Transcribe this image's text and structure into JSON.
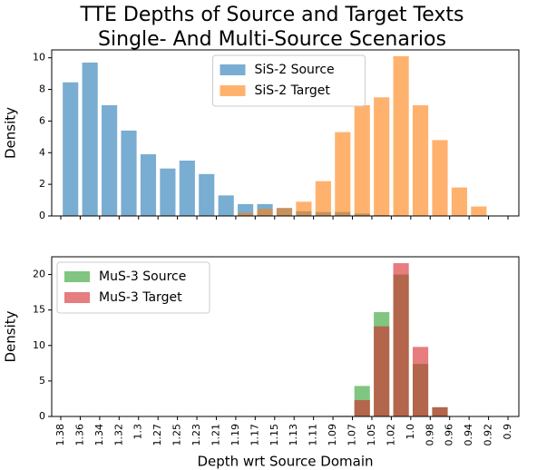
{
  "title": [
    "TTE Depths of Source and Target Texts",
    "Single- And Multi-Source Scenarios"
  ],
  "chart_data": [
    {
      "type": "histogram",
      "ylabel": "Density",
      "bins": [
        "1.38",
        "1.36",
        "1.34",
        "1.32",
        "1.3",
        "1.27",
        "1.25",
        "1.23",
        "1.21",
        "1.19",
        "1.17",
        "1.15",
        "1.13",
        "1.11",
        "1.09",
        "1.07",
        "1.05",
        "1.02",
        "1.0",
        "0.98",
        "0.96",
        "0.94",
        "0.92",
        "0.9"
      ],
      "ylim": [
        0,
        10.5
      ],
      "yticks": [
        0,
        2,
        4,
        6,
        8,
        10
      ],
      "legend": "upper center",
      "series": [
        {
          "name": "SiS-2 Source",
          "color": "#1f77b4",
          "values": [
            8.45,
            9.7,
            7.0,
            5.4,
            3.9,
            3.0,
            3.5,
            2.65,
            1.3,
            0.75,
            0.75,
            0.5,
            0.3,
            0.25,
            0.25,
            0.15,
            0.05,
            0,
            0,
            0,
            0,
            0,
            0
          ]
        },
        {
          "name": "SiS-2 Target",
          "color": "#ff7f0e",
          "values": [
            0,
            0,
            0,
            0,
            0,
            0,
            0,
            0,
            0,
            0.2,
            0.45,
            0.5,
            0.9,
            2.2,
            5.3,
            7.0,
            7.5,
            10.1,
            7.0,
            4.8,
            1.8,
            0.6,
            0
          ]
        }
      ]
    },
    {
      "type": "histogram",
      "ylabel": "Density",
      "xlabel": "Depth wrt Source Domain",
      "bins": [
        "1.38",
        "1.36",
        "1.34",
        "1.32",
        "1.3",
        "1.27",
        "1.25",
        "1.23",
        "1.21",
        "1.19",
        "1.17",
        "1.15",
        "1.13",
        "1.11",
        "1.09",
        "1.07",
        "1.05",
        "1.02",
        "1.0",
        "0.98",
        "0.96",
        "0.94",
        "0.92",
        "0.9"
      ],
      "ylim": [
        0,
        22.5
      ],
      "yticks": [
        0,
        5,
        10,
        15,
        20
      ],
      "legend": "upper left",
      "series": [
        {
          "name": "MuS-3 Source",
          "color": "#2ca02c",
          "values": [
            0,
            0,
            0,
            0,
            0,
            0,
            0,
            0,
            0,
            0,
            0,
            0,
            0,
            0,
            0.1,
            4.3,
            14.7,
            20.0,
            7.4,
            1.3,
            0,
            0,
            0
          ]
        },
        {
          "name": "MuS-3 Target",
          "color": "#d62728",
          "values": [
            0,
            0,
            0,
            0,
            0,
            0,
            0,
            0,
            0,
            0,
            0,
            0,
            0,
            0,
            0,
            2.3,
            12.7,
            21.6,
            9.8,
            1.3,
            0,
            0,
            0
          ]
        }
      ]
    }
  ]
}
